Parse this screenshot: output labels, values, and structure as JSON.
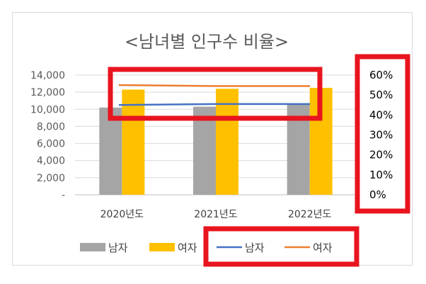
{
  "colors": {
    "male_bar": "#a5a5a5",
    "female_bar": "#ffc000",
    "male_line": "#4472c4",
    "female_line": "#ed7d31",
    "highlight": "#e8141e",
    "grid": "#d9d9d9"
  },
  "chart_data": {
    "type": "bar",
    "title": "<남녀별 인구수 비율>",
    "categories": [
      "2020년도",
      "2021년도",
      "2022년도"
    ],
    "y_ticks": [
      "14,000",
      "12,000",
      "10,000",
      "8,000",
      "6,000",
      "4,000",
      "2,000",
      "-"
    ],
    "y_ticks_right": [
      "60%",
      "50%",
      "40%",
      "30%",
      "20%",
      "10%",
      "0%"
    ],
    "ylim": [
      0,
      14000
    ],
    "ylim_right": [
      0,
      0.6
    ],
    "grid": true,
    "legend_position": "bottom",
    "series": [
      {
        "name": "남자",
        "type": "bar",
        "axis": "left",
        "color": "#a5a5a5",
        "values": [
          10200,
          10300,
          10600
        ]
      },
      {
        "name": "여자",
        "type": "bar",
        "axis": "left",
        "color": "#ffc000",
        "values": [
          12300,
          12400,
          12500
        ]
      },
      {
        "name": "남자",
        "type": "line",
        "axis": "right",
        "color": "#4472c4",
        "values": [
          0.45,
          0.455,
          0.455
        ]
      },
      {
        "name": "여자",
        "type": "line",
        "axis": "right",
        "color": "#ed7d31",
        "values": [
          0.55,
          0.545,
          0.545
        ]
      }
    ]
  }
}
